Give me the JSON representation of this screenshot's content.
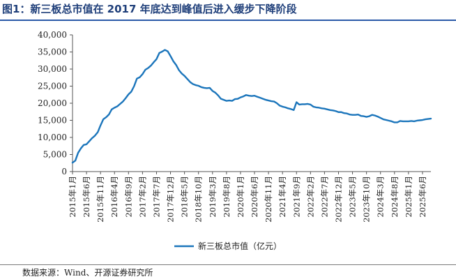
{
  "figure_title": "图1：新三板总市值在 2017 年底达到峰值后进入缓步下降阶段",
  "source_note": "数据来源：Wind、开源证券研究所",
  "colors": {
    "series": "#1b75bb",
    "title": "#1f3f7a",
    "rule": "#2b5aa8",
    "axis": "#555555"
  },
  "chart_data": {
    "type": "line",
    "title": "",
    "xlabel": "",
    "ylabel": "",
    "ylim": [
      0,
      40000
    ],
    "yticks": [
      "0",
      "5,000",
      "10,000",
      "15,000",
      "20,000",
      "25,000",
      "30,000",
      "35,000",
      "40,000"
    ],
    "ytick_values": [
      0,
      5000,
      10000,
      15000,
      20000,
      25000,
      30000,
      35000,
      40000
    ],
    "xlim": [
      "2015-01",
      "2025-09"
    ],
    "xticks": [
      "2015年1月",
      "2015年6月",
      "2015年11月",
      "2016年4月",
      "2016年9月",
      "2017年2月",
      "2017年7月",
      "2017年12月",
      "2018年5月",
      "2018年10月",
      "2019年3月",
      "2019年8月",
      "2020年1月",
      "2020年6月",
      "2020年11月",
      "2021年4月",
      "2021年9月",
      "2022年2月",
      "2022年7月",
      "2022年12月",
      "2023年5月",
      "2023年10月",
      "2024年3月",
      "2024年8月",
      "2025年1月",
      "2025年6月"
    ],
    "grid": false,
    "legend": "bottom",
    "series": [
      {
        "name": "新三板总市值（亿元）",
        "x": [
          "2015-01",
          "2015-02",
          "2015-03",
          "2015-04",
          "2015-05",
          "2015-06",
          "2015-07",
          "2015-08",
          "2015-09",
          "2015-10",
          "2015-11",
          "2015-12",
          "2016-01",
          "2016-02",
          "2016-03",
          "2016-04",
          "2016-05",
          "2016-06",
          "2016-07",
          "2016-08",
          "2016-09",
          "2016-10",
          "2016-11",
          "2016-12",
          "2017-01",
          "2017-02",
          "2017-03",
          "2017-04",
          "2017-05",
          "2017-06",
          "2017-07",
          "2017-08",
          "2017-09",
          "2017-10",
          "2017-11",
          "2017-12",
          "2018-01",
          "2018-02",
          "2018-03",
          "2018-04",
          "2018-05",
          "2018-06",
          "2018-07",
          "2018-08",
          "2018-09",
          "2018-10",
          "2018-11",
          "2018-12",
          "2019-01",
          "2019-02",
          "2019-03",
          "2019-04",
          "2019-05",
          "2019-06",
          "2019-07",
          "2019-08",
          "2019-09",
          "2019-10",
          "2019-11",
          "2019-12",
          "2020-01",
          "2020-02",
          "2020-03",
          "2020-04",
          "2020-05",
          "2020-06",
          "2020-07",
          "2020-08",
          "2020-09",
          "2020-10",
          "2020-11",
          "2020-12",
          "2021-01",
          "2021-02",
          "2021-03",
          "2021-04",
          "2021-05",
          "2021-06",
          "2021-07",
          "2021-08",
          "2021-09",
          "2021-10",
          "2021-11",
          "2021-12",
          "2022-01",
          "2022-02",
          "2022-03",
          "2022-04",
          "2022-05",
          "2022-06",
          "2022-07",
          "2022-08",
          "2022-09",
          "2022-10",
          "2022-11",
          "2022-12",
          "2023-01",
          "2023-02",
          "2023-03",
          "2023-04",
          "2023-05",
          "2023-06",
          "2023-07",
          "2023-08",
          "2023-09",
          "2023-10",
          "2023-11",
          "2023-12",
          "2024-01",
          "2024-02",
          "2024-03",
          "2024-04",
          "2024-05",
          "2024-06",
          "2024-07",
          "2024-08",
          "2024-09",
          "2024-10",
          "2024-11",
          "2024-12",
          "2025-01",
          "2025-02",
          "2025-03",
          "2025-04",
          "2025-05",
          "2025-06",
          "2025-07",
          "2025-08",
          "2025-09"
        ],
        "values": [
          2600,
          3200,
          5500,
          6800,
          7800,
          8000,
          8900,
          9800,
          10500,
          11500,
          13500,
          15300,
          15900,
          16700,
          18200,
          18700,
          19100,
          19800,
          20500,
          21500,
          22600,
          23400,
          25000,
          27200,
          27600,
          28500,
          29800,
          30300,
          31000,
          32000,
          32900,
          34700,
          35100,
          35600,
          35200,
          33800,
          32300,
          31200,
          29700,
          28700,
          28000,
          27100,
          26200,
          25600,
          25300,
          25100,
          24700,
          24500,
          24400,
          24500,
          23600,
          23100,
          22300,
          21300,
          21000,
          20700,
          20800,
          20700,
          21200,
          21300,
          21700,
          22000,
          22400,
          22200,
          22100,
          22200,
          21900,
          21600,
          21300,
          21000,
          20800,
          20600,
          20500,
          20000,
          19300,
          19000,
          18800,
          18500,
          18300,
          18000,
          20300,
          19600,
          19700,
          19700,
          19800,
          19600,
          19000,
          18800,
          18700,
          18500,
          18400,
          18200,
          18000,
          17900,
          17700,
          17400,
          17400,
          17100,
          17000,
          16700,
          16600,
          16600,
          16700,
          16300,
          16200,
          16000,
          16200,
          16600,
          16400,
          16100,
          15700,
          15300,
          15100,
          14900,
          14700,
          14400,
          14400,
          14800,
          14700,
          14700,
          14700,
          14800,
          14700,
          14900,
          15000,
          15100,
          15300,
          15400,
          15500
        ]
      }
    ]
  }
}
